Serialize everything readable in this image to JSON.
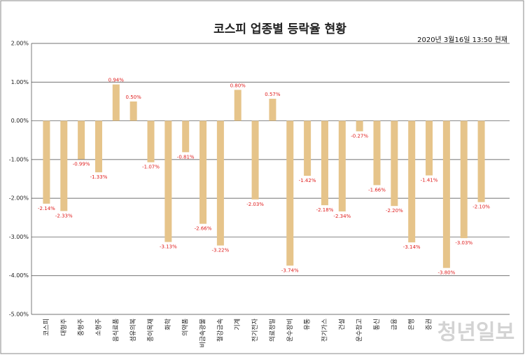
{
  "chart_data": {
    "type": "bar",
    "title": "코스피 업종별 등락율 현황",
    "subtitle": "2020년 3월16일  13:50 현재",
    "watermark": "청년일보",
    "categories": [
      "코스피",
      "대형주",
      "중형주",
      "소형주",
      "음식료품",
      "섬유의복",
      "종이목재",
      "화학",
      "의약품",
      "비금속광물",
      "철강금속",
      "기계",
      "전기전자",
      "의료정밀",
      "운수장비",
      "유통",
      "전기가스",
      "건설",
      "운수창고",
      "통신",
      "금융",
      "은행",
      "증권",
      null,
      null,
      null
    ],
    "values": [
      -2.14,
      -2.33,
      -0.99,
      -1.33,
      0.94,
      0.5,
      -1.07,
      -3.13,
      -0.81,
      -2.66,
      -3.22,
      0.8,
      -2.03,
      0.57,
      -3.74,
      -1.42,
      -2.18,
      -2.34,
      -0.27,
      -1.66,
      -2.2,
      -3.14,
      -1.41,
      -3.8,
      -3.03,
      -2.1
    ],
    "value_labels": [
      "-2.14%",
      "-2.33%",
      "-0.99%",
      "-1.33%",
      "0.94%",
      "0.50%",
      "-1.07%",
      "-3.13%",
      "-0.81%",
      "-2.66%",
      "-3.22%",
      "0.80%",
      "-2.03%",
      "0.57%",
      "-3.74%",
      "-1.42%",
      "-2.18%",
      "-2.34%",
      "-0.27%",
      "-1.66%",
      "-2.20%",
      "-3.14%",
      "-1.41%",
      "-3.80%",
      "-3.03%",
      "-2.10%"
    ],
    "color": "#e6c48a",
    "ylim": [
      -5,
      2
    ],
    "yticks": [
      {
        "value": 2,
        "label": "2.00%"
      },
      {
        "value": 1,
        "label": "1.00%"
      },
      {
        "value": 0,
        "label": "0.00%"
      },
      {
        "value": -1,
        "label": "-1.00%"
      },
      {
        "value": -2,
        "label": "-2.00%"
      },
      {
        "value": -3,
        "label": "-3.00%"
      },
      {
        "value": -4,
        "label": "-4.00%"
      },
      {
        "value": -5,
        "label": "-5.00%"
      }
    ],
    "grid": true
  }
}
